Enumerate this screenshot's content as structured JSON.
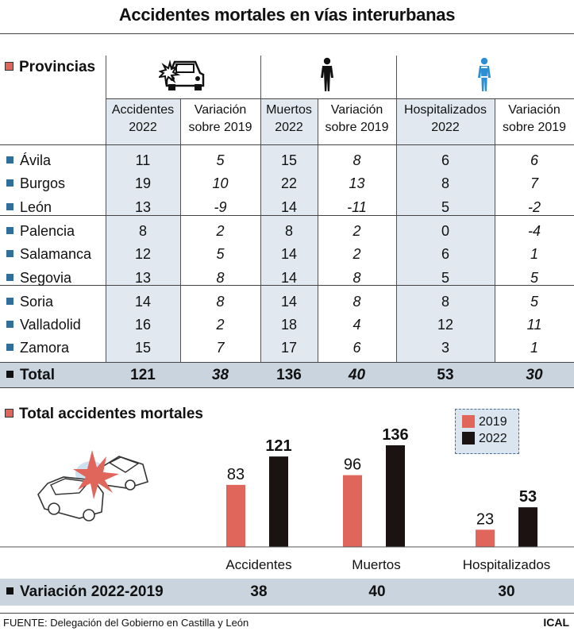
{
  "title": "Accidentes mortales en vías interurbanas",
  "table": {
    "section_label": "Provincias",
    "icons": [
      "car-crash-icon",
      "person-silhouette-icon",
      "person-injured-icon"
    ],
    "columns": [
      [
        "Accidentes",
        "2022"
      ],
      [
        "Variación",
        "sobre 2019"
      ],
      [
        "Muertos",
        "2022"
      ],
      [
        "Variación",
        "sobre 2019"
      ],
      [
        "Hospitalizados",
        "2022"
      ],
      [
        "Variación",
        "sobre 2019"
      ]
    ],
    "rows": [
      {
        "name": "Ávila",
        "values": [
          "11",
          "5",
          "15",
          "8",
          "6",
          "6"
        ]
      },
      {
        "name": "Burgos",
        "values": [
          "19",
          "10",
          "22",
          "13",
          "8",
          "7"
        ]
      },
      {
        "name": "León",
        "values": [
          "13",
          "-9",
          "14",
          "-11",
          "5",
          "-2"
        ]
      },
      {
        "name": "Palencia",
        "values": [
          "8",
          "2",
          "8",
          "2",
          "0",
          "-4"
        ]
      },
      {
        "name": "Salamanca",
        "values": [
          "12",
          "5",
          "14",
          "2",
          "6",
          "1"
        ]
      },
      {
        "name": "Segovia",
        "values": [
          "13",
          "8",
          "14",
          "8",
          "5",
          "5"
        ]
      },
      {
        "name": "Soria",
        "values": [
          "14",
          "8",
          "14",
          "8",
          "8",
          "5"
        ]
      },
      {
        "name": "Valladolid",
        "values": [
          "16",
          "2",
          "18",
          "4",
          "12",
          "11"
        ]
      },
      {
        "name": "Zamora",
        "values": [
          "15",
          "7",
          "17",
          "6",
          "3",
          "1"
        ]
      }
    ],
    "total": {
      "name": "Total",
      "values": [
        "121",
        "38",
        "136",
        "40",
        "53",
        "30"
      ]
    }
  },
  "chart_data": {
    "type": "bar",
    "title": "Total accidentes mortales",
    "categories": [
      "Accidentes",
      "Muertos",
      "Hospitalizados"
    ],
    "series": [
      {
        "name": "2019",
        "values": [
          83,
          96,
          23
        ],
        "color": "#e0655a"
      },
      {
        "name": "2022",
        "values": [
          121,
          136,
          53
        ],
        "color": "#1a1311"
      }
    ],
    "ylim": [
      0,
      136
    ],
    "legend_position": "top-right",
    "grid": false
  },
  "variation": {
    "label": "Variación 2022-2019",
    "values": [
      "38",
      "40",
      "30"
    ]
  },
  "source": "FUENTE: Delegación del Gobierno en Castilla y León",
  "brand": "ICAL",
  "colors": {
    "accent_red": "#e0655a",
    "dark": "#1a1311",
    "band": "#c9d4de",
    "shade": "#e1e8ef",
    "blue_marker": "#2f6f9a"
  }
}
